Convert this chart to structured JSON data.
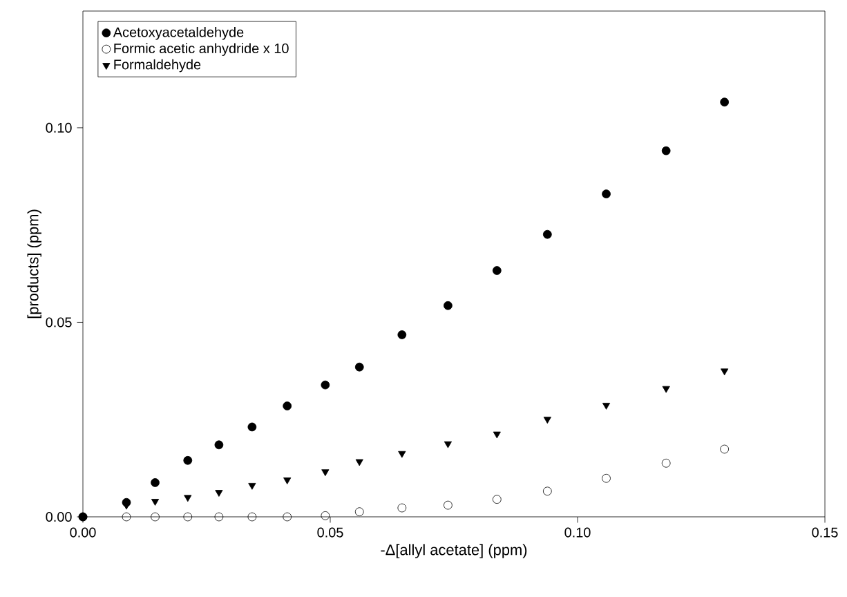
{
  "chart_data": {
    "type": "scatter",
    "xlabel": "-Δ[allyl acetate] (ppm)",
    "ylabel": "[products] (ppm)",
    "x": [
      0,
      0.0088,
      0.0146,
      0.0212,
      0.0275,
      0.0342,
      0.0413,
      0.049,
      0.0559,
      0.0645,
      0.0738,
      0.0837,
      0.0939,
      0.1058,
      0.1179,
      0.1297
    ],
    "series": [
      {
        "name": "Acetoxyacetaldehyde",
        "color": "#000000",
        "marker": "circle",
        "values": [
          0,
          0.0037,
          0.0088,
          0.0145,
          0.0185,
          0.0231,
          0.0285,
          0.0339,
          0.0385,
          0.0468,
          0.0543,
          0.0633,
          0.0726,
          0.083,
          0.0941,
          0.1066
        ]
      },
      {
        "name": "Formic acetic anhydride x 10",
        "color": "#000000",
        "marker": "open circle",
        "values": [
          0,
          0,
          0,
          0,
          0,
          0,
          0,
          0.0003,
          0.0013,
          0.0023,
          0.003,
          0.0045,
          0.0066,
          0.0099,
          0.0138,
          0.0174
        ]
      },
      {
        "name": "Formaldehyde",
        "color": "#000000",
        "marker": "triangle down",
        "values": [
          0,
          0.003,
          0.004,
          0.005,
          0.0063,
          0.0081,
          0.0095,
          0.0116,
          0.0142,
          0.0163,
          0.0188,
          0.0213,
          0.0251,
          0.0287,
          0.033,
          0.0375
        ]
      }
    ],
    "xlim": [
      0,
      0.15
    ],
    "ylim": [
      0,
      0.13
    ],
    "xticks": [
      {
        "value": 0,
        "label": "0.00"
      },
      {
        "value": 0.05,
        "label": "0.05"
      },
      {
        "value": 0.1,
        "label": "0.10"
      },
      {
        "value": 0.15,
        "label": "0.15"
      }
    ],
    "yticks": [
      {
        "value": 0,
        "label": "0.00"
      },
      {
        "value": 0.05,
        "label": "0.05"
      },
      {
        "value": 0.1,
        "label": "0.10"
      }
    ],
    "grid": false,
    "legend": "top left"
  }
}
